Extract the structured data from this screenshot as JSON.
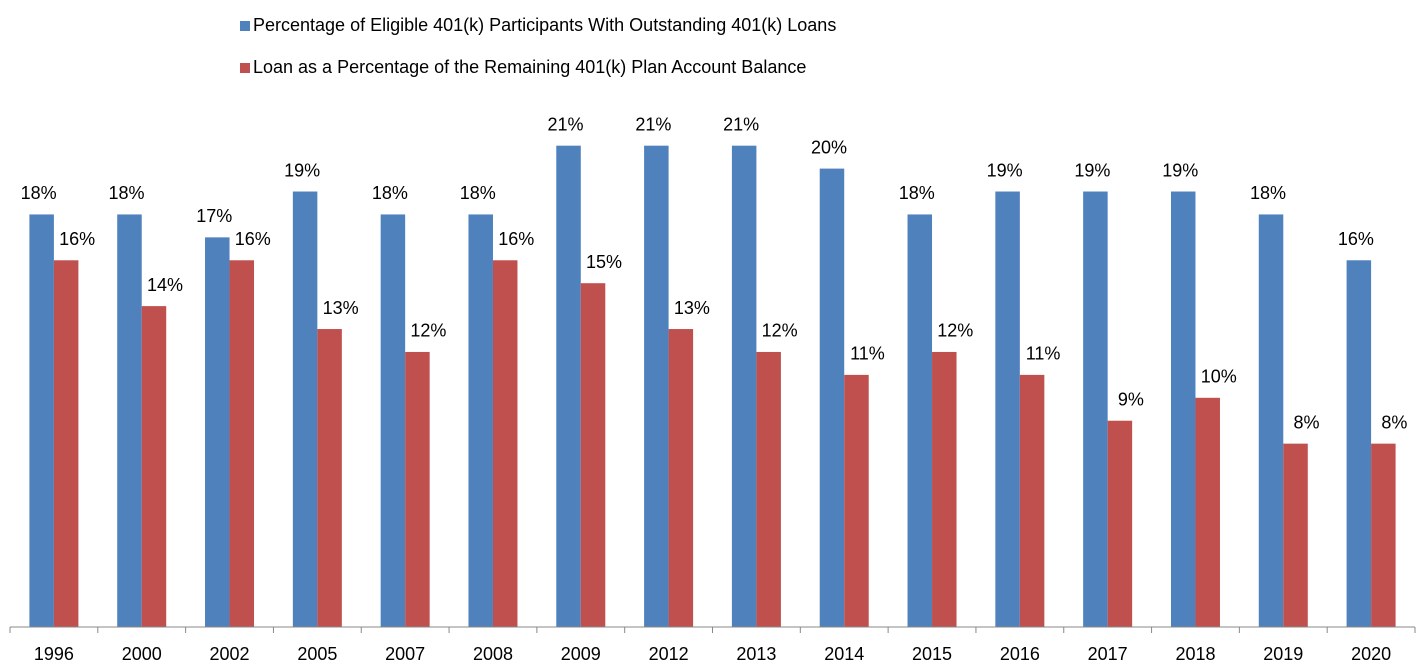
{
  "chart_data": {
    "type": "bar",
    "categories": [
      "1996",
      "2000",
      "2002",
      "2005",
      "2007",
      "2008",
      "2009",
      "2012",
      "2013",
      "2014",
      "2015",
      "2016",
      "2017",
      "2018",
      "2019",
      "2020"
    ],
    "series": [
      {
        "name": "Percentage of Eligible 401(k) Participants With Outstanding 401(k) Loans",
        "color": "#4f81bd",
        "values": [
          18,
          18,
          17,
          19,
          18,
          18,
          21,
          21,
          21,
          20,
          18,
          19,
          19,
          19,
          18,
          16
        ],
        "value_labels": [
          "18%",
          "18%",
          "17%",
          "19%",
          "18%",
          "18%",
          "21%",
          "21%",
          "21%",
          "20%",
          "18%",
          "19%",
          "19%",
          "19%",
          "18%",
          "16%"
        ]
      },
      {
        "name": "Loan as a Percentage of the Remaining 401(k) Plan Account Balance",
        "color": "#c0504d",
        "values": [
          16,
          14,
          16,
          13,
          12,
          16,
          15,
          13,
          12,
          11,
          12,
          11,
          9,
          10,
          8,
          8
        ],
        "value_labels": [
          "16%",
          "14%",
          "16%",
          "13%",
          "12%",
          "16%",
          "15%",
          "13%",
          "12%",
          "11%",
          "12%",
          "11%",
          "9%",
          "10%",
          "8%",
          "8%"
        ]
      }
    ],
    "ylim": [
      0,
      25
    ],
    "legend": "top"
  }
}
